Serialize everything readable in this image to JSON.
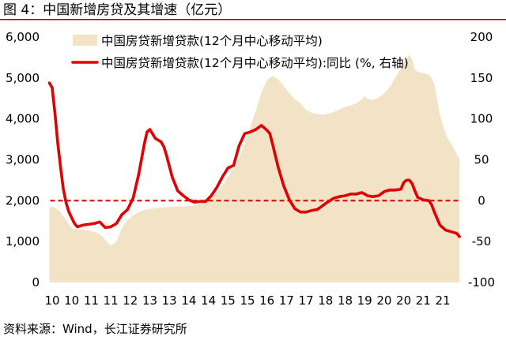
{
  "chart_data": {
    "type": "area",
    "title": "图 4：中国新增房贷及其增速（亿元）",
    "source_note": "资料来源：Wind，长江证券研究所",
    "title_rule_color": "#B00000",
    "legend_position": "top-left",
    "grid": false,
    "x": {
      "tick_labels": [
        "10",
        "10",
        "11",
        "11",
        "12",
        "13",
        "13",
        "14",
        "14",
        "15",
        "15",
        "16",
        "17",
        "17",
        "18",
        "18",
        "19",
        "20",
        "20",
        "21",
        "21"
      ]
    },
    "y_left": {
      "range": [
        0,
        6000
      ],
      "tick_labels": [
        "0",
        "1,000",
        "2,000",
        "3,000",
        "4,000",
        "5,000",
        "6,000"
      ]
    },
    "y_right": {
      "range": [
        -100,
        200
      ],
      "tick_labels": [
        "-100",
        "-50",
        "0",
        "50",
        "100",
        "150",
        "200"
      ]
    },
    "reference_lines": [
      {
        "axis": "right",
        "value": 0,
        "style": "dashed",
        "color": "#D40000"
      }
    ],
    "series": [
      {
        "name": "中国房贷新增贷款(12个月中心移动平均)",
        "type": "area",
        "axis": "left",
        "color": "#F2E2C6",
        "points": [
          [
            "2010-01",
            1850
          ],
          [
            "2010-03",
            1830
          ],
          [
            "2010-05",
            1720
          ],
          [
            "2010-07",
            1520
          ],
          [
            "2010-09",
            1330
          ],
          [
            "2010-11",
            1290
          ],
          [
            "2011-01",
            1290
          ],
          [
            "2011-03",
            1270
          ],
          [
            "2011-05",
            1240
          ],
          [
            "2011-07",
            1180
          ],
          [
            "2011-09",
            1050
          ],
          [
            "2011-11",
            900
          ],
          [
            "2012-01",
            1000
          ],
          [
            "2012-03",
            1330
          ],
          [
            "2012-05",
            1520
          ],
          [
            "2012-07",
            1640
          ],
          [
            "2012-09",
            1720
          ],
          [
            "2012-11",
            1770
          ],
          [
            "2013-01",
            1800
          ],
          [
            "2013-05",
            1830
          ],
          [
            "2013-09",
            1850
          ],
          [
            "2014-01",
            1860
          ],
          [
            "2014-05",
            1880
          ],
          [
            "2014-09",
            1960
          ],
          [
            "2015-01",
            2200
          ],
          [
            "2015-03",
            2380
          ],
          [
            "2015-05",
            2580
          ],
          [
            "2015-07",
            2800
          ],
          [
            "2015-09",
            3050
          ],
          [
            "2015-11",
            3400
          ],
          [
            "2016-01",
            3800
          ],
          [
            "2016-03",
            4200
          ],
          [
            "2016-05",
            4650
          ],
          [
            "2016-07",
            4950
          ],
          [
            "2016-09",
            5050
          ],
          [
            "2016-11",
            4970
          ],
          [
            "2017-01",
            4800
          ],
          [
            "2017-03",
            4620
          ],
          [
            "2017-05",
            4480
          ],
          [
            "2017-07",
            4380
          ],
          [
            "2017-09",
            4220
          ],
          [
            "2017-11",
            4150
          ],
          [
            "2018-01",
            4120
          ],
          [
            "2018-03",
            4100
          ],
          [
            "2018-05",
            4130
          ],
          [
            "2018-07",
            4170
          ],
          [
            "2018-09",
            4230
          ],
          [
            "2018-11",
            4290
          ],
          [
            "2019-01",
            4330
          ],
          [
            "2019-03",
            4380
          ],
          [
            "2019-05",
            4480
          ],
          [
            "2019-06",
            4560
          ],
          [
            "2019-07",
            4480
          ],
          [
            "2019-09",
            4460
          ],
          [
            "2019-11",
            4520
          ],
          [
            "2020-01",
            4620
          ],
          [
            "2020-03",
            4780
          ],
          [
            "2020-05",
            5000
          ],
          [
            "2020-07",
            5250
          ],
          [
            "2020-09",
            5480
          ],
          [
            "2020-10",
            5560
          ],
          [
            "2020-11",
            5450
          ],
          [
            "2020-12",
            5200
          ],
          [
            "2021-01",
            5150
          ],
          [
            "2021-03",
            5120
          ],
          [
            "2021-05",
            5080
          ],
          [
            "2021-06",
            5000
          ],
          [
            "2021-07",
            4850
          ],
          [
            "2021-08",
            4450
          ],
          [
            "2021-09",
            4100
          ],
          [
            "2021-10",
            3850
          ],
          [
            "2021-11",
            3650
          ],
          [
            "2021-12",
            3500
          ],
          [
            "2022-01",
            3380
          ],
          [
            "2022-02",
            3270
          ],
          [
            "2022-03",
            3150
          ],
          [
            "2022-04",
            3000
          ]
        ]
      },
      {
        "name": "中国房贷新增贷款(12个月中心移动平均):同比 (%, 右轴)",
        "type": "line",
        "axis": "right",
        "color": "#E00000",
        "points": [
          [
            "2010-01",
            144
          ],
          [
            "2010-02",
            138
          ],
          [
            "2010-03",
            106
          ],
          [
            "2010-04",
            70
          ],
          [
            "2010-05",
            41
          ],
          [
            "2010-06",
            14
          ],
          [
            "2010-07",
            -3
          ],
          [
            "2010-08",
            -14
          ],
          [
            "2010-09",
            -21
          ],
          [
            "2010-10",
            -28
          ],
          [
            "2010-11",
            -32
          ],
          [
            "2010-12",
            -31
          ],
          [
            "2011-01",
            -30
          ],
          [
            "2011-03",
            -29
          ],
          [
            "2011-05",
            -28
          ],
          [
            "2011-07",
            -26
          ],
          [
            "2011-09",
            -33
          ],
          [
            "2011-11",
            -32
          ],
          [
            "2012-01",
            -28
          ],
          [
            "2012-03",
            -17
          ],
          [
            "2012-05",
            -11
          ],
          [
            "2012-07",
            3
          ],
          [
            "2012-09",
            32
          ],
          [
            "2012-11",
            69
          ],
          [
            "2012-12",
            84
          ],
          [
            "2013-01",
            87
          ],
          [
            "2013-03",
            76
          ],
          [
            "2013-05",
            72
          ],
          [
            "2013-06",
            66
          ],
          [
            "2013-07",
            55
          ],
          [
            "2013-09",
            29
          ],
          [
            "2013-11",
            12
          ],
          [
            "2014-01",
            6
          ],
          [
            "2014-03",
            1
          ],
          [
            "2014-05",
            -2
          ],
          [
            "2014-07",
            -1
          ],
          [
            "2014-09",
            -1
          ],
          [
            "2014-11",
            6
          ],
          [
            "2015-01",
            16
          ],
          [
            "2015-03",
            29
          ],
          [
            "2015-05",
            40
          ],
          [
            "2015-07",
            43
          ],
          [
            "2015-09",
            67
          ],
          [
            "2015-11",
            82
          ],
          [
            "2016-01",
            84
          ],
          [
            "2016-03",
            87
          ],
          [
            "2016-05",
            92
          ],
          [
            "2016-07",
            86
          ],
          [
            "2016-08",
            82
          ],
          [
            "2016-09",
            69
          ],
          [
            "2016-11",
            41
          ],
          [
            "2017-01",
            18
          ],
          [
            "2017-03",
            1
          ],
          [
            "2017-05",
            -10
          ],
          [
            "2017-07",
            -14
          ],
          [
            "2017-09",
            -14
          ],
          [
            "2017-11",
            -12
          ],
          [
            "2018-01",
            -11
          ],
          [
            "2018-03",
            -6
          ],
          [
            "2018-05",
            -1
          ],
          [
            "2018-07",
            3
          ],
          [
            "2018-09",
            5
          ],
          [
            "2018-11",
            6
          ],
          [
            "2019-01",
            8
          ],
          [
            "2019-03",
            8
          ],
          [
            "2019-05",
            10
          ],
          [
            "2019-07",
            6
          ],
          [
            "2019-09",
            5
          ],
          [
            "2019-11",
            6
          ],
          [
            "2020-01",
            11
          ],
          [
            "2020-03",
            13
          ],
          [
            "2020-05",
            13
          ],
          [
            "2020-07",
            14
          ],
          [
            "2020-08",
            22
          ],
          [
            "2020-09",
            25
          ],
          [
            "2020-10",
            25
          ],
          [
            "2020-11",
            21
          ],
          [
            "2020-12",
            12
          ],
          [
            "2021-01",
            4
          ],
          [
            "2021-03",
            1
          ],
          [
            "2021-05",
            0
          ],
          [
            "2021-06",
            -5
          ],
          [
            "2021-07",
            -14
          ],
          [
            "2021-09",
            -30
          ],
          [
            "2021-11",
            -36
          ],
          [
            "2022-01",
            -38
          ],
          [
            "2022-03",
            -40
          ],
          [
            "2022-04",
            -44
          ]
        ]
      }
    ]
  }
}
